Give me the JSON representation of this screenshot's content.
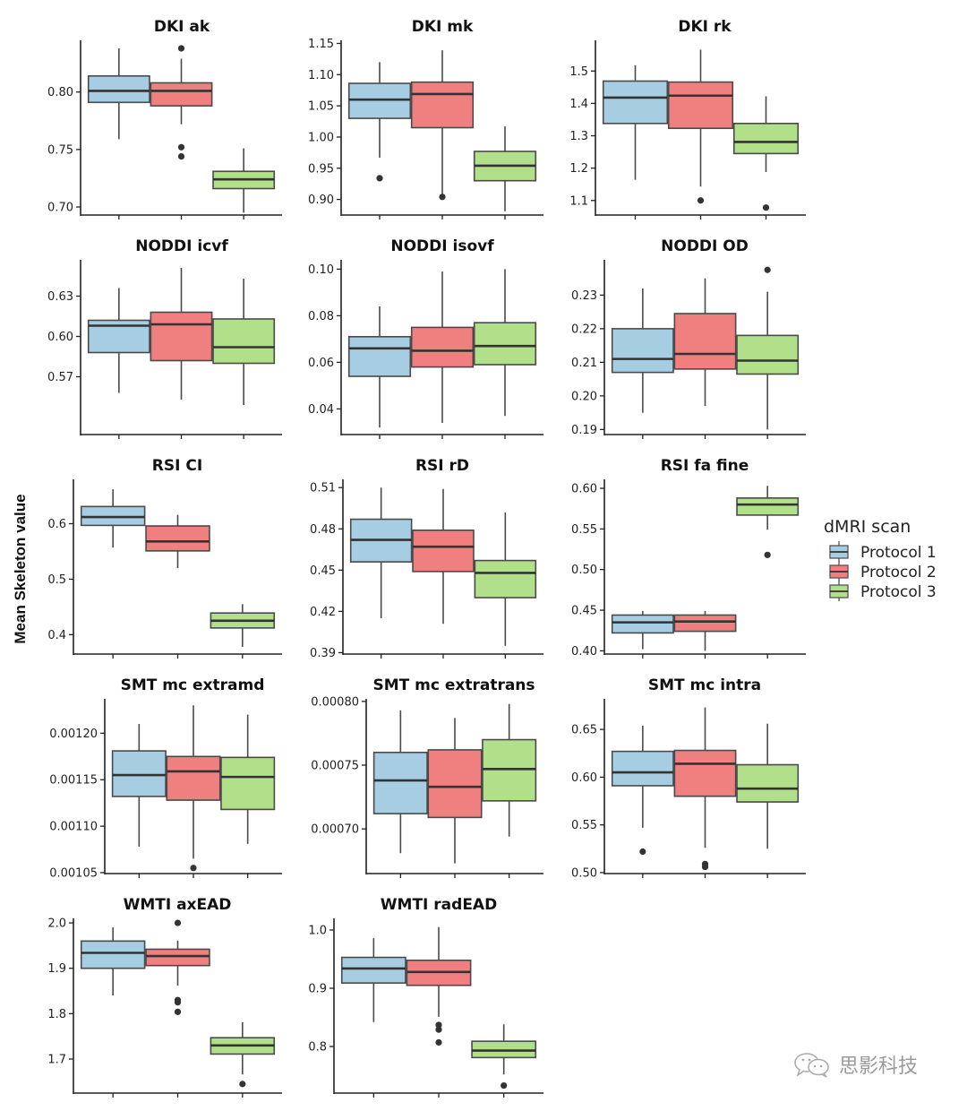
{
  "chart_data": {
    "type": "boxplot",
    "ylabel": "Mean Skeleton value",
    "legend": {
      "title": "dMRI scan",
      "placement": "right",
      "entries": [
        {
          "label": "Protocol 1",
          "color": "#a6cde2"
        },
        {
          "label": "Protocol 2",
          "color": "#f08080"
        },
        {
          "label": "Protocol 3",
          "color": "#b2df8a"
        }
      ]
    },
    "colors": {
      "axis": "#222222",
      "box_edge": "#4a4a4a",
      "median": "#333333",
      "outlier": "#333333"
    },
    "panels": [
      {
        "title": "DKI ak",
        "ylim": [
          0.693,
          0.845
        ],
        "ticks": [
          "0.70",
          "0.75",
          "0.80"
        ],
        "tick_values": [
          0.7,
          0.75,
          0.8
        ],
        "boxes": [
          {
            "q1": 0.791,
            "median": 0.801,
            "q3": 0.814,
            "whislo": 0.759,
            "whishi": 0.838,
            "fliers": []
          },
          {
            "q1": 0.788,
            "median": 0.801,
            "q3": 0.808,
            "whislo": 0.772,
            "whishi": 0.829,
            "fliers": [
              0.838,
              0.752,
              0.744
            ]
          },
          {
            "q1": 0.716,
            "median": 0.724,
            "q3": 0.731,
            "whislo": 0.695,
            "whishi": 0.751,
            "fliers": []
          }
        ]
      },
      {
        "title": "DKI mk",
        "ylim": [
          0.875,
          1.155
        ],
        "ticks": [
          "0.90",
          "0.95",
          "1.00",
          "1.05",
          "1.10",
          "1.15"
        ],
        "tick_values": [
          0.9,
          0.95,
          1.0,
          1.05,
          1.1,
          1.15
        ],
        "boxes": [
          {
            "q1": 1.03,
            "median": 1.06,
            "q3": 1.086,
            "whislo": 0.967,
            "whishi": 1.12,
            "fliers": [
              0.934
            ]
          },
          {
            "q1": 1.015,
            "median": 1.069,
            "q3": 1.088,
            "whislo": 0.905,
            "whishi": 1.139,
            "fliers": [
              0.904
            ]
          },
          {
            "q1": 0.93,
            "median": 0.954,
            "q3": 0.977,
            "whislo": 0.881,
            "whishi": 1.017,
            "fliers": []
          }
        ]
      },
      {
        "title": "DKI rk",
        "ylim": [
          1.055,
          1.595
        ],
        "ticks": [
          "1.1",
          "1.2",
          "1.3",
          "1.4",
          "1.5"
        ],
        "tick_values": [
          1.1,
          1.2,
          1.3,
          1.4,
          1.5
        ],
        "boxes": [
          {
            "q1": 1.338,
            "median": 1.418,
            "q3": 1.469,
            "whislo": 1.164,
            "whishi": 1.518,
            "fliers": []
          },
          {
            "q1": 1.323,
            "median": 1.424,
            "q3": 1.466,
            "whislo": 1.143,
            "whishi": 1.566,
            "fliers": [
              1.1
            ]
          },
          {
            "q1": 1.245,
            "median": 1.281,
            "q3": 1.338,
            "whislo": 1.188,
            "whishi": 1.422,
            "fliers": [
              1.078
            ]
          }
        ]
      },
      {
        "title": "NODDI icvf",
        "ylim": [
          0.527,
          0.657
        ],
        "ticks": [
          "0.57",
          "0.60",
          "0.63"
        ],
        "tick_values": [
          0.57,
          0.6,
          0.63
        ],
        "boxes": [
          {
            "q1": 0.588,
            "median": 0.608,
            "q3": 0.612,
            "whislo": 0.558,
            "whishi": 0.636,
            "fliers": []
          },
          {
            "q1": 0.582,
            "median": 0.609,
            "q3": 0.618,
            "whislo": 0.553,
            "whishi": 0.651,
            "fliers": []
          },
          {
            "q1": 0.58,
            "median": 0.592,
            "q3": 0.613,
            "whislo": 0.549,
            "whishi": 0.643,
            "fliers": []
          }
        ]
      },
      {
        "title": "NODDI isovf",
        "ylim": [
          0.029,
          0.104
        ],
        "ticks": [
          "0.04",
          "0.06",
          "0.08",
          "0.10"
        ],
        "tick_values": [
          0.04,
          0.06,
          0.08,
          0.1
        ],
        "boxes": [
          {
            "q1": 0.054,
            "median": 0.066,
            "q3": 0.071,
            "whislo": 0.032,
            "whishi": 0.084,
            "fliers": []
          },
          {
            "q1": 0.058,
            "median": 0.065,
            "q3": 0.075,
            "whislo": 0.034,
            "whishi": 0.099,
            "fliers": []
          },
          {
            "q1": 0.059,
            "median": 0.067,
            "q3": 0.077,
            "whislo": 0.037,
            "whishi": 0.1,
            "fliers": []
          }
        ]
      },
      {
        "title": "NODDI OD",
        "ylim": [
          0.1885,
          0.2405
        ],
        "ticks": [
          "0.19",
          "0.20",
          "0.21",
          "0.22",
          "0.23"
        ],
        "tick_values": [
          0.19,
          0.2,
          0.21,
          0.22,
          0.23
        ],
        "boxes": [
          {
            "q1": 0.207,
            "median": 0.211,
            "q3": 0.22,
            "whislo": 0.195,
            "whishi": 0.232,
            "fliers": []
          },
          {
            "q1": 0.208,
            "median": 0.2125,
            "q3": 0.2245,
            "whislo": 0.197,
            "whishi": 0.235,
            "fliers": []
          },
          {
            "q1": 0.2065,
            "median": 0.2105,
            "q3": 0.218,
            "whislo": 0.19,
            "whishi": 0.231,
            "fliers": [
              0.2375
            ]
          }
        ]
      },
      {
        "title": "RSI CI",
        "ylim": [
          0.365,
          0.68
        ],
        "ticks": [
          "0.4",
          "0.5",
          "0.6"
        ],
        "tick_values": [
          0.4,
          0.5,
          0.6
        ],
        "boxes": [
          {
            "q1": 0.597,
            "median": 0.612,
            "q3": 0.631,
            "whislo": 0.557,
            "whishi": 0.662,
            "fliers": []
          },
          {
            "q1": 0.551,
            "median": 0.568,
            "q3": 0.596,
            "whislo": 0.52,
            "whishi": 0.616,
            "fliers": []
          },
          {
            "q1": 0.412,
            "median": 0.425,
            "q3": 0.439,
            "whislo": 0.378,
            "whishi": 0.455,
            "fliers": []
          }
        ]
      },
      {
        "title": "RSI rD",
        "ylim": [
          0.389,
          0.516
        ],
        "ticks": [
          "0.39",
          "0.42",
          "0.45",
          "0.48",
          "0.51"
        ],
        "tick_values": [
          0.39,
          0.42,
          0.45,
          0.48,
          0.51
        ],
        "boxes": [
          {
            "q1": 0.456,
            "median": 0.472,
            "q3": 0.487,
            "whislo": 0.415,
            "whishi": 0.51,
            "fliers": []
          },
          {
            "q1": 0.449,
            "median": 0.467,
            "q3": 0.479,
            "whislo": 0.411,
            "whishi": 0.509,
            "fliers": []
          },
          {
            "q1": 0.43,
            "median": 0.448,
            "q3": 0.457,
            "whislo": 0.395,
            "whishi": 0.492,
            "fliers": []
          }
        ]
      },
      {
        "title": "RSI fa fine",
        "ylim": [
          0.396,
          0.611
        ],
        "ticks": [
          "0.40",
          "0.45",
          "0.50",
          "0.55",
          "0.60"
        ],
        "tick_values": [
          0.4,
          0.45,
          0.5,
          0.55,
          0.6
        ],
        "boxes": [
          {
            "q1": 0.422,
            "median": 0.435,
            "q3": 0.444,
            "whislo": 0.402,
            "whishi": 0.449,
            "fliers": []
          },
          {
            "q1": 0.424,
            "median": 0.436,
            "q3": 0.444,
            "whislo": 0.4,
            "whishi": 0.449,
            "fliers": []
          },
          {
            "q1": 0.567,
            "median": 0.58,
            "q3": 0.588,
            "whislo": 0.549,
            "whishi": 0.603,
            "fliers": [
              0.518
            ]
          }
        ]
      },
      {
        "title": "SMT mc extramd",
        "ylim": [
          0.001049,
          0.001237
        ],
        "ticks": [
          "0.00105",
          "0.00110",
          "0.00115",
          "0.00120"
        ],
        "tick_values": [
          0.00105,
          0.0011,
          0.00115,
          0.0012
        ],
        "boxes": [
          {
            "q1": 0.001132,
            "median": 0.001155,
            "q3": 0.001181,
            "whislo": 0.001078,
            "whishi": 0.00121,
            "fliers": []
          },
          {
            "q1": 0.001128,
            "median": 0.001159,
            "q3": 0.001175,
            "whislo": 0.001065,
            "whishi": 0.00123,
            "fliers": [
              0.001055
            ]
          },
          {
            "q1": 0.001118,
            "median": 0.001153,
            "q3": 0.001174,
            "whislo": 0.001081,
            "whishi": 0.00122,
            "fliers": []
          }
        ]
      },
      {
        "title": "SMT mc extratrans",
        "ylim": [
          0.000665,
          0.000802
        ],
        "ticks": [
          "0.00070",
          "0.00075",
          "0.00080"
        ],
        "tick_values": [
          0.0007,
          0.00075,
          0.0008
        ],
        "boxes": [
          {
            "q1": 0.000712,
            "median": 0.000738,
            "q3": 0.00076,
            "whislo": 0.000681,
            "whishi": 0.000793,
            "fliers": []
          },
          {
            "q1": 0.000709,
            "median": 0.000733,
            "q3": 0.000762,
            "whislo": 0.000673,
            "whishi": 0.000787,
            "fliers": []
          },
          {
            "q1": 0.000722,
            "median": 0.000747,
            "q3": 0.00077,
            "whislo": 0.000694,
            "whishi": 0.000798,
            "fliers": []
          }
        ]
      },
      {
        "title": "SMT mc intra",
        "ylim": [
          0.499,
          0.682
        ],
        "ticks": [
          "0.50",
          "0.55",
          "0.60",
          "0.65"
        ],
        "tick_values": [
          0.5,
          0.55,
          0.6,
          0.65
        ],
        "boxes": [
          {
            "q1": 0.591,
            "median": 0.605,
            "q3": 0.627,
            "whislo": 0.547,
            "whishi": 0.654,
            "fliers": [
              0.522
            ]
          },
          {
            "q1": 0.58,
            "median": 0.614,
            "q3": 0.628,
            "whislo": 0.526,
            "whishi": 0.673,
            "fliers": [
              0.509,
              0.506
            ]
          },
          {
            "q1": 0.574,
            "median": 0.588,
            "q3": 0.613,
            "whislo": 0.525,
            "whishi": 0.656,
            "fliers": []
          }
        ]
      },
      {
        "title": "WMTI axEAD",
        "ylim": [
          1.625,
          2.01
        ],
        "ticks": [
          "1.7",
          "1.8",
          "1.9",
          "2.0"
        ],
        "tick_values": [
          1.7,
          1.8,
          1.9,
          2.0
        ],
        "boxes": [
          {
            "q1": 1.9,
            "median": 1.934,
            "q3": 1.96,
            "whislo": 1.84,
            "whishi": 1.99,
            "fliers": []
          },
          {
            "q1": 1.906,
            "median": 1.927,
            "q3": 1.942,
            "whislo": 1.862,
            "whishi": 1.961,
            "fliers": [
              2.0,
              1.83,
              1.825,
              1.804
            ]
          },
          {
            "q1": 1.711,
            "median": 1.73,
            "q3": 1.747,
            "whislo": 1.666,
            "whishi": 1.781,
            "fliers": [
              1.645
            ]
          }
        ]
      },
      {
        "title": "WMTI radEAD",
        "ylim": [
          0.72,
          1.02
        ],
        "ticks": [
          "0.8",
          "0.9",
          "1.0"
        ],
        "tick_values": [
          0.8,
          0.9,
          1.0
        ],
        "boxes": [
          {
            "q1": 0.909,
            "median": 0.934,
            "q3": 0.953,
            "whislo": 0.842,
            "whishi": 0.986,
            "fliers": []
          },
          {
            "q1": 0.905,
            "median": 0.928,
            "q3": 0.948,
            "whislo": 0.851,
            "whishi": 1.005,
            "fliers": [
              0.837,
              0.829,
              0.807
            ]
          },
          {
            "q1": 0.781,
            "median": 0.793,
            "q3": 0.809,
            "whislo": 0.752,
            "whishi": 0.838,
            "fliers": [
              0.733
            ]
          }
        ]
      }
    ]
  },
  "watermark": {
    "text": "思影科技",
    "icon": "wechat-icon"
  }
}
